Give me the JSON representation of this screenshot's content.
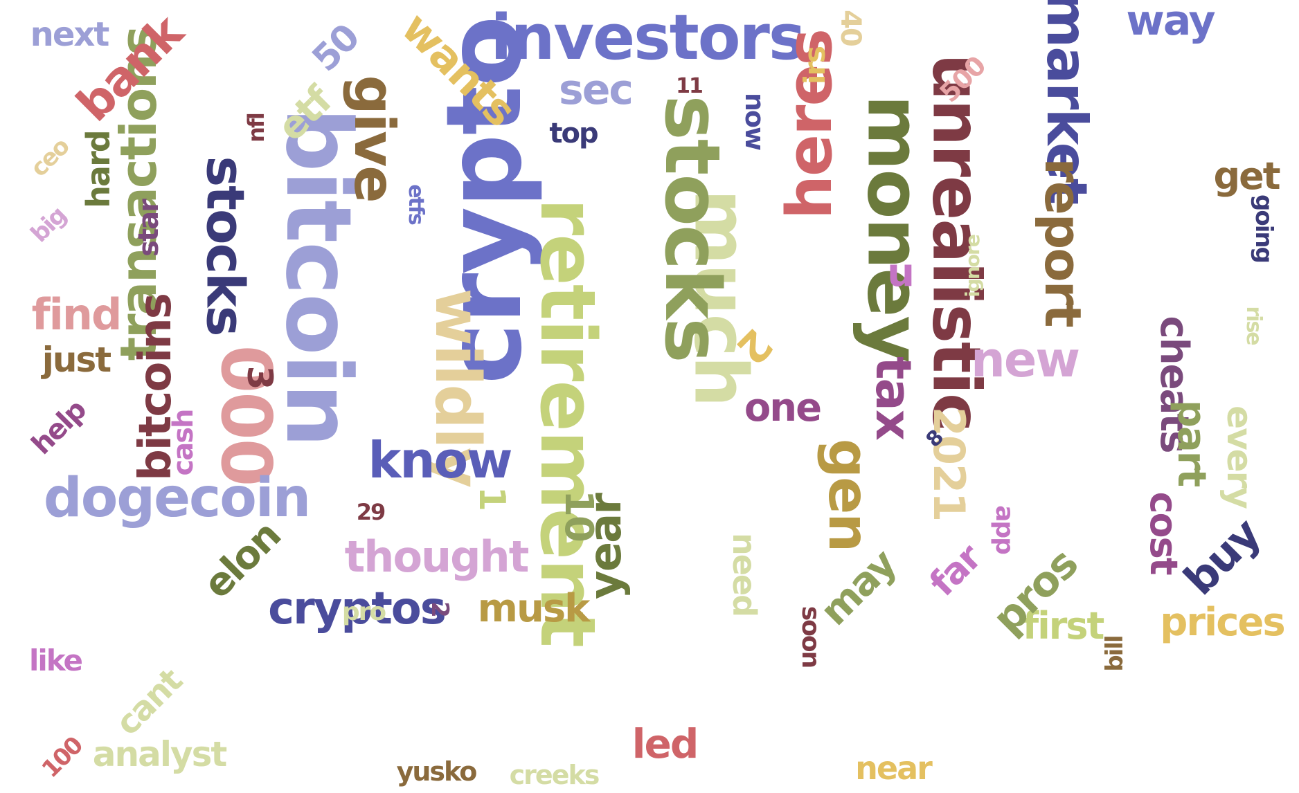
{
  "words": [
    {
      "text": "crypto",
      "color": "#6c72c8"
    },
    {
      "text": "bitcoin",
      "color": "#9c9fd6"
    },
    {
      "text": "retirement",
      "color": "#c4d27a"
    },
    {
      "text": "much",
      "color": "#d4dca4"
    },
    {
      "text": "stocks",
      "color": "#8fa05c"
    },
    {
      "text": "money",
      "color": "#6b7a3c"
    },
    {
      "text": "unrealistic",
      "color": "#7e3a44"
    },
    {
      "text": "investors",
      "color": "#6c72c8"
    },
    {
      "text": "000",
      "color": "#df9a9c"
    },
    {
      "text": "wildly",
      "color": "#e4cf9a"
    },
    {
      "text": "heres",
      "color": "#cf6468"
    },
    {
      "text": "market",
      "color": "#4a4c9c"
    },
    {
      "text": "report",
      "color": "#8a6a3c"
    },
    {
      "text": "give",
      "color": "#8a6a3c"
    },
    {
      "text": "stocks",
      "color": "#3a3a78"
    },
    {
      "text": "transactions",
      "color": "#8fa05c"
    },
    {
      "text": "bitcoins",
      "color": "#7e3a44"
    },
    {
      "text": "gen",
      "color": "#b89a44"
    },
    {
      "text": "dogecoin",
      "color": "#9c9fd6"
    },
    {
      "text": "know",
      "color": "#5a5eb8"
    },
    {
      "text": "new",
      "color": "#d4a4d4"
    },
    {
      "text": "tax",
      "color": "#944a8a"
    },
    {
      "text": "year",
      "color": "#6b7a3c"
    },
    {
      "text": "2021",
      "color": "#e4cf9a"
    },
    {
      "text": "cryptos",
      "color": "#4a4c9c"
    },
    {
      "text": "thought",
      "color": "#d4a4d4"
    },
    {
      "text": "musk",
      "color": "#b89a44"
    },
    {
      "text": "elon",
      "color": "#6b7a3c"
    },
    {
      "text": "cheats",
      "color": "#7a4a7c"
    },
    {
      "text": "buy",
      "color": "#3a3a78"
    },
    {
      "text": "prices",
      "color": "#e4c060"
    },
    {
      "text": "first",
      "color": "#c4d27a"
    },
    {
      "text": "pros",
      "color": "#8fa05c"
    },
    {
      "text": "part",
      "color": "#8fa05c"
    },
    {
      "text": "cost",
      "color": "#944a8a"
    },
    {
      "text": "far",
      "color": "#c474c4"
    },
    {
      "text": "may",
      "color": "#8fa05c"
    },
    {
      "text": "need",
      "color": "#d4dca4"
    },
    {
      "text": "every",
      "color": "#d4dca4"
    },
    {
      "text": "bank",
      "color": "#cf6468"
    },
    {
      "text": "wants",
      "color": "#e4c060"
    },
    {
      "text": "sec",
      "color": "#9c9fd6"
    },
    {
      "text": "etf",
      "color": "#d4dca4"
    },
    {
      "text": "way",
      "color": "#6c72c8"
    },
    {
      "text": "next",
      "color": "#9c9fd6"
    },
    {
      "text": "50",
      "color": "#9c9fd6"
    },
    {
      "text": "40",
      "color": "#e4cf9a"
    },
    {
      "text": "irs",
      "color": "#e4c060"
    },
    {
      "text": "500",
      "color": "#e7a4a6"
    },
    {
      "text": "11",
      "color": "#7e3a44"
    },
    {
      "text": "top",
      "color": "#3a3a78"
    },
    {
      "text": "now",
      "color": "#4a4c9c"
    },
    {
      "text": "nfl",
      "color": "#7e3a44"
    },
    {
      "text": "ceo",
      "color": "#e4cf9a"
    },
    {
      "text": "hard",
      "color": "#6b7a3c"
    },
    {
      "text": "big",
      "color": "#d4a4d4"
    },
    {
      "text": "star",
      "color": "#7a4a7c"
    },
    {
      "text": "etfs",
      "color": "#6c72c8"
    },
    {
      "text": "u",
      "color": "#c474c4"
    },
    {
      "text": "get",
      "color": "#8a6a3c"
    },
    {
      "text": "going",
      "color": "#3a3a78"
    },
    {
      "text": "ignore",
      "color": "#d4dca4"
    },
    {
      "text": "rise",
      "color": "#d4dca4"
    },
    {
      "text": "find",
      "color": "#df9a9c"
    },
    {
      "text": "just",
      "color": "#8a6a3c"
    },
    {
      "text": "help",
      "color": "#944a8a"
    },
    {
      "text": "cash",
      "color": "#c474c4"
    },
    {
      "text": "3",
      "color": "#7e3a44"
    },
    {
      "text": "29",
      "color": "#7e3a44"
    },
    {
      "text": "2",
      "color": "#e4c060"
    },
    {
      "text": "8",
      "color": "#3a3a78"
    },
    {
      "text": "one",
      "color": "#944a8a"
    },
    {
      "text": "10",
      "color": "#8fa05c"
    },
    {
      "text": "1",
      "color": "#c4d27a"
    },
    {
      "text": "2",
      "color": "#7a4a7c"
    },
    {
      "text": "pro",
      "color": "#d4dca4"
    },
    {
      "text": "like",
      "color": "#c474c4"
    },
    {
      "text": "cant",
      "color": "#d4dca4"
    },
    {
      "text": "100",
      "color": "#cf6468"
    },
    {
      "text": "analyst",
      "color": "#d4dca4"
    },
    {
      "text": "yusko",
      "color": "#8a6a3c"
    },
    {
      "text": "creeks",
      "color": "#d4dca4"
    },
    {
      "text": "led",
      "color": "#cf6468"
    },
    {
      "text": "near",
      "color": "#e4c060"
    },
    {
      "text": "soon",
      "color": "#7e3a44"
    },
    {
      "text": "app",
      "color": "#c474c4"
    },
    {
      "text": "bill",
      "color": "#8a6a3c"
    }
  ]
}
